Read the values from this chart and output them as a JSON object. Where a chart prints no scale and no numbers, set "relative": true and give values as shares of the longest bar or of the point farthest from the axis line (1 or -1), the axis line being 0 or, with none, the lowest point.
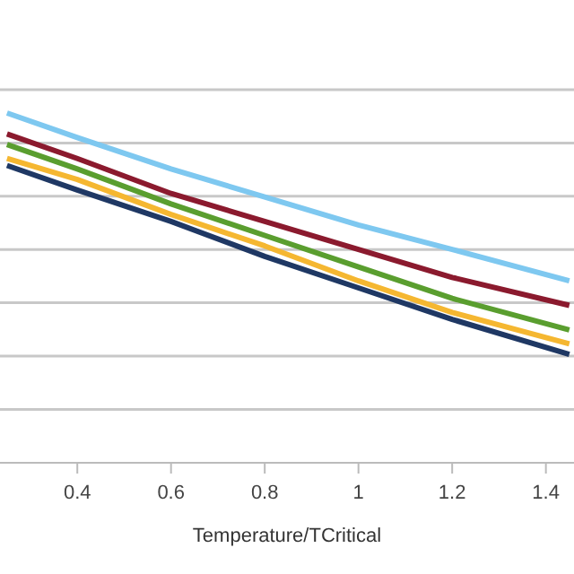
{
  "chart_data": {
    "type": "line",
    "relative": true,
    "xlabel": "Temperature/TCritical",
    "x": [
      0.25,
      0.4,
      0.6,
      0.8,
      1.0,
      1.2,
      1.45
    ],
    "xlim": [
      0.235,
      1.46
    ],
    "xticks": [
      0.4,
      0.6,
      0.8,
      1,
      1.2,
      1.4
    ],
    "grid": "y",
    "marker": "none",
    "line_style": "solid",
    "series": [
      {
        "color": "#7ec8f0",
        "values": [
          1,
          0.93,
          0.84,
          0.76,
          0.68,
          0.61,
          0.52
        ]
      },
      {
        "color": "#8b1a2e",
        "values": [
          0.94,
          0.87,
          0.77,
          0.69,
          0.61,
          0.53,
          0.45
        ]
      },
      {
        "color": "#5a9e2f",
        "values": [
          0.91,
          0.84,
          0.74,
          0.65,
          0.56,
          0.47,
          0.38
        ]
      },
      {
        "color": "#f5b731",
        "values": [
          0.87,
          0.81,
          0.71,
          0.62,
          0.52,
          0.43,
          0.34
        ]
      },
      {
        "color": "#1f3864",
        "values": [
          0.85,
          0.78,
          0.69,
          0.59,
          0.5,
          0.41,
          0.31
        ]
      }
    ]
  }
}
